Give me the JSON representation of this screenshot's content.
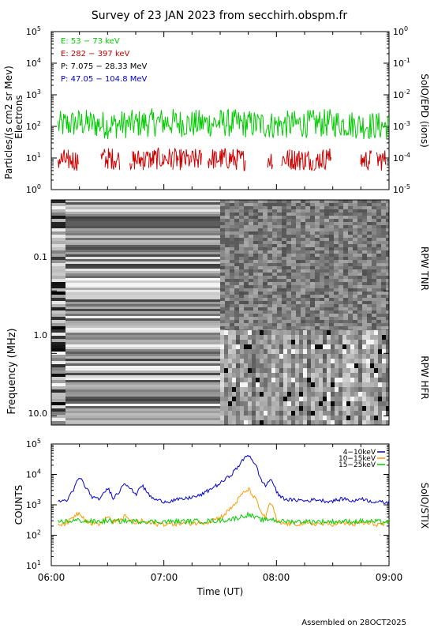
{
  "title": "Survey of 23 JAN 2023 from secchirh.obspm.fr",
  "footer": "Assembled on 28OCT2025",
  "x_axis": {
    "label": "Time (UT)",
    "ticks": [
      "06:00",
      "07:00",
      "08:00",
      "09:00"
    ],
    "range_hours": [
      6,
      9
    ]
  },
  "panels": {
    "particles": {
      "ylabel_line1": "Particles/(s cm2 sr Mev)",
      "ylabel_line2": "Electrons",
      "right_label": "SolO/EPD (ions)",
      "left_ticks": [
        {
          "base": "10",
          "exp": "0"
        },
        {
          "base": "10",
          "exp": "1"
        },
        {
          "base": "10",
          "exp": "2"
        },
        {
          "base": "10",
          "exp": "3"
        },
        {
          "base": "10",
          "exp": "4"
        },
        {
          "base": "10",
          "exp": "5"
        }
      ],
      "right_ticks": [
        {
          "base": "10",
          "exp": "-5"
        },
        {
          "base": "10",
          "exp": "-4"
        },
        {
          "base": "10",
          "exp": "-3"
        },
        {
          "base": "10",
          "exp": "-2"
        },
        {
          "base": "10",
          "exp": "-1"
        },
        {
          "base": "10",
          "exp": "0"
        }
      ],
      "legend": [
        {
          "text": "E: 53 − 73 keV",
          "color": "#00cc00"
        },
        {
          "text": "E: 282 − 397 keV",
          "color": "#cc0000"
        },
        {
          "text": "P: 7.075 − 28.33 MeV",
          "color": "#000000"
        },
        {
          "text": "P: 47.05 − 104.8 MeV",
          "color": "#0000cc"
        }
      ]
    },
    "radio": {
      "ylabel": "Frequency (MHz)",
      "ticks": [
        "0.1",
        "1.0",
        "10.0"
      ],
      "tnr_label": "RPW TNR",
      "hfr_label": "RPW HFR"
    },
    "stix": {
      "ylabel": "COUNTS",
      "right_label": "SolO/STIX",
      "ticks": [
        {
          "base": "10",
          "exp": "1"
        },
        {
          "base": "10",
          "exp": "2"
        },
        {
          "base": "10",
          "exp": "3"
        },
        {
          "base": "10",
          "exp": "4"
        },
        {
          "base": "10",
          "exp": "5"
        }
      ],
      "legend": [
        {
          "text": "4−10keV",
          "color": "#0000cc"
        },
        {
          "text": "10−15keV",
          "color": "#ff9900"
        },
        {
          "text": "15−25keV",
          "color": "#00cc00"
        }
      ]
    }
  },
  "chart_data": [
    {
      "type": "line",
      "title": "Survey of 23 JAN 2023 from secchirh.obspm.fr",
      "xlabel": "",
      "ylabel": "Particles/(s cm2 sr Mev) Electrons",
      "yscale": "log",
      "ylim": [
        1,
        100000
      ],
      "xlim": [
        6.0,
        9.0
      ],
      "x": [
        6.0,
        6.25,
        6.5,
        6.75,
        7.0,
        7.25,
        7.5,
        7.75,
        8.0,
        8.25,
        8.5,
        8.75,
        9.0
      ],
      "series": [
        {
          "name": "E: 53 − 73 keV",
          "color": "#00cc00",
          "values": [
            100,
            130,
            110,
            120,
            140,
            120,
            130,
            120,
            110,
            120,
            130,
            110,
            100
          ]
        },
        {
          "name": "E: 282 − 397 keV",
          "color": "#cc0000",
          "values": [
            8,
            8,
            9,
            8,
            9,
            8,
            9,
            8,
            9,
            8,
            9,
            8,
            8
          ]
        }
      ],
      "legend": "top-left"
    },
    {
      "type": "heatmap",
      "ylabel": "Frequency (MHz)",
      "yscale": "log",
      "ylim": [
        15,
        0.004
      ],
      "xlim": [
        6.0,
        9.0
      ],
      "regions": [
        {
          "name": "RPW TNR",
          "freq_mhz": [
            0.004,
            1.0
          ]
        },
        {
          "name": "RPW HFR",
          "freq_mhz": [
            1.0,
            15
          ]
        }
      ],
      "note_x_hours": [
        6.0,
        7.5
      ]
    },
    {
      "type": "line",
      "xlabel": "Time (UT)",
      "ylabel": "COUNTS",
      "yscale": "log",
      "ylim": [
        10,
        100000
      ],
      "xlim": [
        6.0,
        9.0
      ],
      "x": [
        6.0,
        6.05,
        6.1,
        6.15,
        6.2,
        6.25,
        6.3,
        6.35,
        6.4,
        6.45,
        6.5,
        6.55,
        6.6,
        6.65,
        6.7,
        6.75,
        6.8,
        6.85,
        6.9,
        6.95,
        7.0,
        7.05,
        7.1,
        7.15,
        7.2,
        7.25,
        7.3,
        7.35,
        7.4,
        7.45,
        7.5,
        7.55,
        7.6,
        7.65,
        7.7,
        7.75,
        7.8,
        7.85,
        7.9,
        7.95,
        8.0,
        8.05,
        8.1,
        8.15,
        8.2,
        8.25,
        8.3,
        8.35,
        8.4,
        8.45,
        8.5,
        8.55,
        8.6,
        8.65,
        8.7,
        8.75,
        8.8,
        8.85,
        8.9,
        8.95,
        9.0
      ],
      "series": [
        {
          "name": "4−10keV",
          "color": "#0000cc",
          "values": [
            1300,
            1300,
            1350,
            1500,
            3000,
            8000,
            4000,
            2000,
            1500,
            1800,
            3500,
            1700,
            2500,
            5500,
            3500,
            2000,
            4500,
            2500,
            1600,
            1400,
            1300,
            1300,
            1450,
            1500,
            1600,
            1800,
            1900,
            2300,
            3000,
            4000,
            5000,
            7000,
            10000,
            16000,
            28000,
            45000,
            25000,
            8000,
            4000,
            7000,
            2500,
            1700,
            1500,
            1400,
            1450,
            1350,
            1400,
            1500,
            1400,
            1300,
            1350,
            1450,
            1600,
            1400,
            1300,
            1700,
            1400,
            1300,
            1250,
            1200,
            1200
          ]
        },
        {
          "name": "10−15keV",
          "color": "#ff9900",
          "values": [
            230,
            235,
            240,
            260,
            420,
            560,
            320,
            250,
            240,
            250,
            420,
            250,
            300,
            420,
            300,
            250,
            300,
            260,
            240,
            235,
            235,
            230,
            240,
            240,
            245,
            250,
            255,
            265,
            280,
            330,
            380,
            520,
            800,
            1300,
            2300,
            3200,
            1800,
            700,
            350,
            1100,
            280,
            240,
            240,
            235,
            240,
            235,
            235,
            240,
            235,
            230,
            235,
            240,
            245,
            240,
            230,
            260,
            240,
            235,
            230,
            225,
            225
          ]
        },
        {
          "name": "15−25keV",
          "color": "#00cc00",
          "values": [
            280,
            280,
            285,
            290,
            300,
            310,
            290,
            285,
            280,
            285,
            300,
            285,
            290,
            300,
            290,
            285,
            290,
            285,
            280,
            280,
            280,
            280,
            285,
            285,
            285,
            290,
            290,
            290,
            295,
            300,
            305,
            320,
            340,
            370,
            420,
            480,
            400,
            330,
            310,
            350,
            295,
            285,
            285,
            280,
            285,
            280,
            280,
            285,
            280,
            280,
            280,
            285,
            285,
            280,
            280,
            290,
            285,
            280,
            280,
            275,
            275
          ]
        }
      ],
      "legend": "top-right"
    }
  ]
}
